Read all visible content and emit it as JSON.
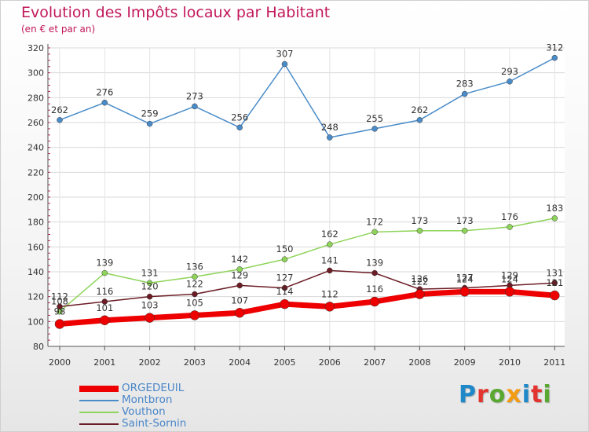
{
  "title": "Evolution des Impôts locaux par Habitant",
  "subtitle": "(en € et par an)",
  "brand": "Proxiti",
  "chart_data": {
    "type": "line",
    "title": "Evolution des Impôts locaux par Habitant",
    "subtitle": "(en € et par an)",
    "xlabel": "",
    "ylabel": "",
    "categories": [
      "2000",
      "2001",
      "2002",
      "2003",
      "2004",
      "2005",
      "2006",
      "2007",
      "2008",
      "2009",
      "2010",
      "2011"
    ],
    "ylim": [
      80,
      320
    ],
    "yticks": [
      80,
      100,
      120,
      140,
      160,
      180,
      200,
      220,
      240,
      260,
      280,
      300,
      320
    ],
    "grid": true,
    "legend_position": "bottom-left",
    "series": [
      {
        "name": "Montbron",
        "color": "#4a8cc9",
        "values": [
          262,
          276,
          259,
          273,
          256,
          307,
          248,
          255,
          262,
          283,
          293,
          312
        ]
      },
      {
        "name": "Vouthon",
        "color": "#8fd45a",
        "values": [
          108,
          139,
          131,
          136,
          142,
          150,
          162,
          172,
          173,
          173,
          176,
          183
        ]
      },
      {
        "name": "Saint-Sornin",
        "color": "#6b1c25",
        "values": [
          112,
          116,
          120,
          122,
          129,
          127,
          141,
          139,
          126,
          127,
          129,
          131
        ]
      },
      {
        "name": "ORGEDEUIL",
        "color": "#ee0000",
        "values": [
          98,
          101,
          103,
          105,
          107,
          114,
          112,
          116,
          122,
          124,
          124,
          121
        ]
      }
    ],
    "legend": [
      "ORGEDEUIL",
      "Montbron",
      "Vouthon",
      "Saint-Sornin"
    ]
  }
}
